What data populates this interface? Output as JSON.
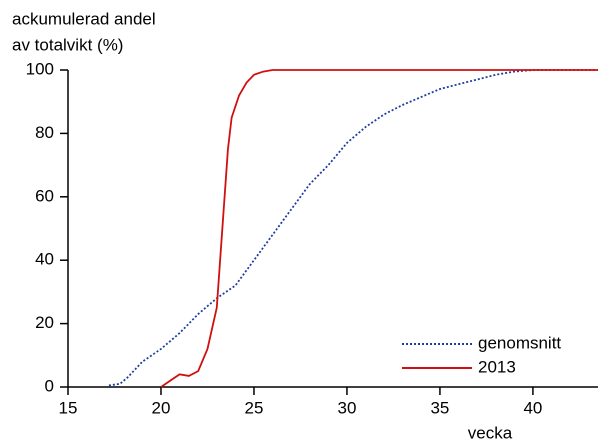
{
  "chart_data": {
    "type": "line",
    "y_label": [
      "ackumulerad andel",
      "av totalvikt (%)"
    ],
    "x_label": "vecka",
    "xlim": [
      15,
      43.5
    ],
    "xticks": [
      15,
      20,
      25,
      30,
      35,
      40
    ],
    "ylim": [
      0,
      100
    ],
    "yticks": [
      0,
      20,
      40,
      60,
      80,
      100
    ],
    "series": [
      {
        "name": "genomsnitt",
        "color": "#1f3fa0",
        "dash": "dotted",
        "x": [
          17.2,
          17.8,
          18.2,
          19,
          20,
          21,
          22,
          23,
          24,
          25,
          26,
          27,
          28,
          29,
          30,
          31,
          32,
          33,
          34,
          35,
          36,
          37,
          38,
          39,
          40,
          43.5
        ],
        "values": [
          0.5,
          1,
          3,
          8,
          12,
          17,
          23,
          28,
          32,
          40,
          48,
          56,
          64,
          70,
          77,
          82,
          86,
          89,
          91.5,
          94,
          95.5,
          97,
          98.5,
          99.5,
          100,
          100
        ]
      },
      {
        "name": "2013",
        "color": "#d01010",
        "dash": "solid",
        "x": [
          20,
          20.5,
          21,
          21.5,
          22,
          22.5,
          23,
          23.3,
          23.6,
          23.8,
          24.2,
          24.6,
          25,
          25.5,
          26,
          43.5
        ],
        "values": [
          0,
          2,
          4,
          3.5,
          5,
          12,
          25,
          50,
          75,
          85,
          92,
          96,
          98.5,
          99.5,
          100,
          100
        ]
      }
    ]
  }
}
